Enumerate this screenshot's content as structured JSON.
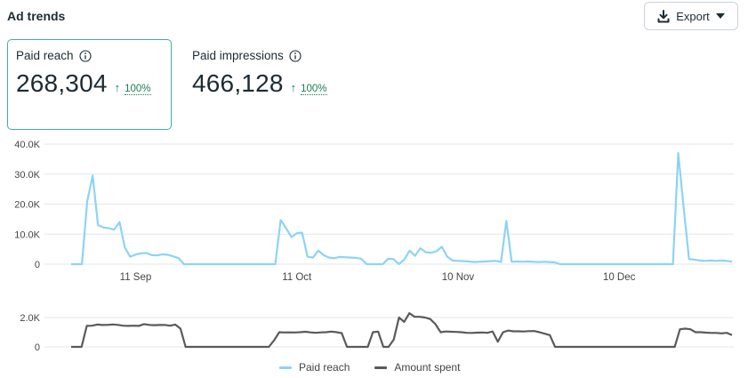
{
  "header": {
    "title": "Ad trends",
    "export_label": "Export"
  },
  "cards": [
    {
      "label": "Paid reach",
      "value": "268,304",
      "change": "100%"
    },
    {
      "label": "Paid impressions",
      "value": "466,128",
      "change": "100%"
    }
  ],
  "legend": {
    "series1": "Paid reach",
    "series2": "Amount spent"
  },
  "colors": {
    "paid_reach": "#8dd3f5",
    "amount_spent": "#5a5a5a",
    "accent": "#3db0a4",
    "positive": "#1a7d55"
  },
  "chart_data": [
    {
      "type": "line",
      "ylim": [
        0,
        40000
      ],
      "y_ticks": [
        "0",
        "10.0K",
        "20.0K",
        "30.0K",
        "40.0K"
      ],
      "x_tick_labels": [
        "11 Sep",
        "11 Oct",
        "10 Nov",
        "10 Dec"
      ],
      "x_start_date": "2023-08-30",
      "series": [
        {
          "name": "Paid reach",
          "values": [
            0,
            0,
            0,
            21000,
            29500,
            13000,
            12200,
            12000,
            11500,
            14000,
            5500,
            2500,
            3200,
            3600,
            3700,
            3000,
            2900,
            3300,
            3100,
            2600,
            2000,
            0,
            0,
            0,
            0,
            0,
            0,
            0,
            0,
            0,
            0,
            0,
            0,
            0,
            0,
            0,
            0,
            0,
            0,
            14700,
            12000,
            9000,
            10300,
            10500,
            2500,
            2200,
            4500,
            3000,
            2200,
            2000,
            2400,
            2300,
            2200,
            2100,
            1800,
            0,
            0,
            0,
            0,
            1800,
            1700,
            0,
            1500,
            4500,
            2800,
            5300,
            4000,
            3800,
            4300,
            5800,
            2500,
            1200,
            1100,
            1000,
            900,
            700,
            800,
            900,
            1000,
            1100,
            700,
            14400,
            800,
            900,
            800,
            900,
            800,
            700,
            800,
            700,
            600,
            0,
            0,
            0,
            0,
            0,
            0,
            0,
            0,
            0,
            0,
            0,
            0,
            0,
            0,
            0,
            0,
            0,
            0,
            0,
            0,
            0,
            0,
            37000,
            19000,
            1700,
            1500,
            1200,
            1100,
            1200,
            1100,
            1200,
            1100,
            800
          ]
        }
      ]
    },
    {
      "type": "line",
      "ylim": [
        0,
        2000
      ],
      "y_ticks": [
        "0",
        "2.0K"
      ],
      "series": [
        {
          "name": "Amount spent",
          "values": [
            0,
            0,
            0,
            1430,
            1440,
            1520,
            1490,
            1500,
            1530,
            1500,
            1440,
            1430,
            1440,
            1430,
            1550,
            1500,
            1480,
            1490,
            1500,
            1440,
            1520,
            1240,
            0,
            0,
            0,
            0,
            0,
            0,
            0,
            0,
            0,
            0,
            0,
            0,
            0,
            0,
            0,
            0,
            0,
            450,
            1000,
            980,
            990,
            980,
            1000,
            1030,
            990,
            960,
            990,
            1000,
            1040,
            1000,
            940,
            0,
            0,
            0,
            0,
            0,
            1000,
            1040,
            0,
            0,
            500,
            2000,
            1700,
            2300,
            2050,
            2050,
            2000,
            1900,
            1550,
            1000,
            1050,
            1030,
            1020,
            1000,
            960,
            950,
            970,
            980,
            960,
            1050,
            350,
            1000,
            1110,
            1060,
            1060,
            1050,
            1070,
            1080,
            1000,
            900,
            800,
            0,
            0,
            0,
            0,
            0,
            0,
            0,
            0,
            0,
            0,
            0,
            0,
            0,
            0,
            0,
            0,
            0,
            0,
            0,
            0,
            0,
            0,
            0,
            0,
            1200,
            1240,
            1200,
            1000,
            1000,
            970,
            950,
            950,
            920,
            960,
            800
          ]
        }
      ]
    }
  ]
}
